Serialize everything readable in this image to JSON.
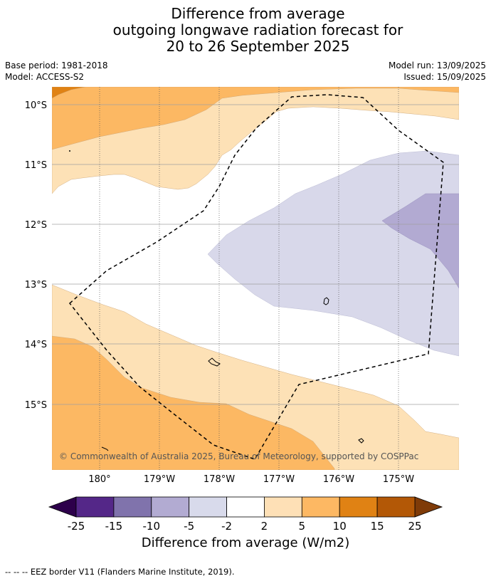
{
  "title": {
    "line1": "Difference from average",
    "line2": "outgoing longwave radiation forecast for",
    "line3": "20 to 26 September 2025"
  },
  "meta": {
    "base_period": "Base period: 1981-2018",
    "model": "Model: ACCESS-S2",
    "model_run": "Model run: 13/09/2025",
    "issued": "Issued: 15/09/2025"
  },
  "map": {
    "lat_labels": [
      "10°S",
      "11°S",
      "12°S",
      "13°S",
      "14°S",
      "15°S"
    ],
    "lon_labels": [
      "180°",
      "179°W",
      "178°W",
      "177°W",
      "176°W",
      "175°W"
    ],
    "copyright": "© Commonwealth of Australia 2025, Bureau of Meteorology, supported by COSPPac",
    "colors": {
      "anom_neg20": "#7e6fac",
      "anom_neg10": "#b2aad2",
      "anom_neg5": "#d8d8ea",
      "anom_pos2": "#fde1b6",
      "anom_pos5": "#fcb863",
      "anom_pos10": "#e08214",
      "anom_pos15": "#b35806",
      "anom_pos25": "#7f3b08",
      "anom_neg25": "#2d004b",
      "anom_neg15": "#542788"
    }
  },
  "colorbar": {
    "ticks": [
      "-25",
      "-15",
      "-10",
      "-5",
      "-2",
      "2",
      "5",
      "10",
      "15",
      "25"
    ],
    "colors": [
      "#542788",
      "#8073ac",
      "#b2abd2",
      "#d8daeb",
      "#ffffff",
      "#fee0b6",
      "#fdb863",
      "#e08214",
      "#b35806"
    ],
    "under_color": "#2d004b",
    "over_color": "#7f3b08",
    "label": "Difference from average (W/m2)"
  },
  "legend": {
    "eez": "--  --  -- EEZ border V11 (Flanders Marine Institute, 2019)."
  }
}
